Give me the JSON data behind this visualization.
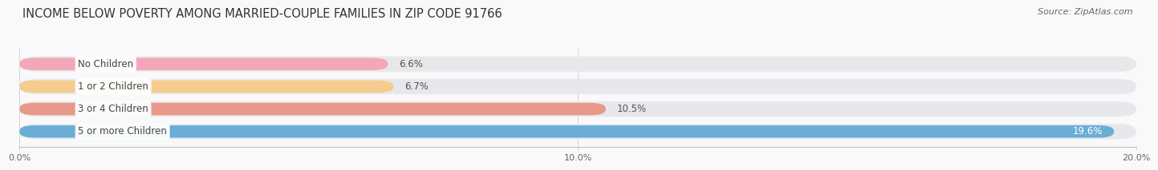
{
  "title": "INCOME BELOW POVERTY AMONG MARRIED-COUPLE FAMILIES IN ZIP CODE 91766",
  "source": "Source: ZipAtlas.com",
  "categories": [
    "No Children",
    "1 or 2 Children",
    "3 or 4 Children",
    "5 or more Children"
  ],
  "values": [
    6.6,
    6.7,
    10.5,
    19.6
  ],
  "bar_colors": [
    "#f4a7b9",
    "#f5cc8e",
    "#e8998a",
    "#6aaed6"
  ],
  "label_colors": [
    "#333333",
    "#333333",
    "#333333",
    "#ffffff"
  ],
  "track_color": "#e8e8ec",
  "xlim": [
    0,
    20.0
  ],
  "xticks": [
    0.0,
    10.0,
    20.0
  ],
  "xtick_labels": [
    "0.0%",
    "10.0%",
    "20.0%"
  ],
  "background_color": "#f9f9f9",
  "title_fontsize": 10.5,
  "bar_label_fontsize": 8.5,
  "category_fontsize": 8.5,
  "source_fontsize": 8
}
